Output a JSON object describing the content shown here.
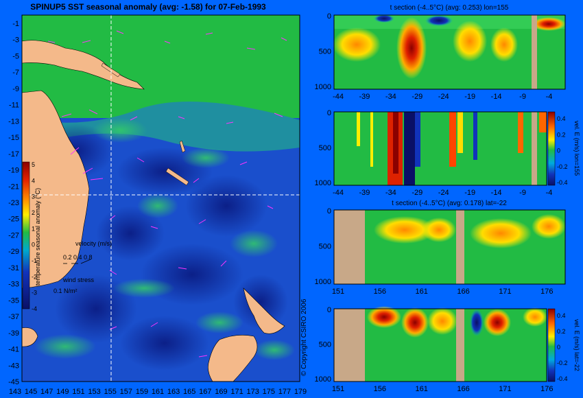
{
  "map": {
    "title": "SPINUP5 SST seasonal anomaly (avg: -1.58) for 07-Feb-1993",
    "lat_ticks": [
      "-1",
      "-3",
      "-5",
      "-7",
      "-9",
      "-11",
      "-13",
      "-15",
      "-17",
      "-19",
      "-21",
      "-23",
      "-25",
      "-27",
      "-29",
      "-31",
      "-33",
      "-35",
      "-37",
      "-39",
      "-41",
      "-43",
      "-45"
    ],
    "lon_ticks": [
      "143",
      "145",
      "147",
      "149",
      "151",
      "153",
      "155",
      "157",
      "159",
      "161",
      "163",
      "165",
      "167",
      "169",
      "171",
      "173",
      "175",
      "177",
      "179"
    ],
    "colorbar_label": "temperature seasonal anomaly (°C)",
    "colorbar_ticks": [
      "5",
      "4",
      "3",
      "2",
      "1",
      "0",
      "-1",
      "-2",
      "-3",
      "-4"
    ],
    "velocity_label": "velocity (m/s)",
    "velocity_scale": "0.2 0.4 0.8",
    "wind_label": "wind stress",
    "wind_scale": "0.1 N/m²",
    "section_lon": 155,
    "section_lat": -22
  },
  "copyright": "© Copyright CSIRO 2006",
  "panels": [
    {
      "title": "t section (-4..5°C) (avg: 0.253) lon=155",
      "x_ticks": [
        "-44",
        "-39",
        "-34",
        "-29",
        "-24",
        "-19",
        "-14",
        "-9",
        "-4"
      ],
      "y_ticks": [
        "0",
        "500",
        "1000"
      ],
      "colorbar_label": "",
      "colorbar_ticks": []
    },
    {
      "title": "",
      "x_ticks": [
        "-44",
        "-39",
        "-34",
        "-29",
        "-24",
        "-19",
        "-14",
        "-9",
        "-4"
      ],
      "y_ticks": [
        "0",
        "500",
        "1000"
      ],
      "colorbar_label": "vel. E (m/s) lon=155",
      "colorbar_ticks": [
        "0.4",
        "0.2",
        "0",
        "-0.2",
        "-0.4"
      ]
    },
    {
      "title": "t section (-4..5°C) (avg: 0.178) lat=-22",
      "x_ticks": [
        "151",
        "156",
        "161",
        "166",
        "171",
        "176"
      ],
      "y_ticks": [
        "0",
        "500",
        "1000"
      ],
      "colorbar_label": "",
      "colorbar_ticks": []
    },
    {
      "title": "",
      "x_ticks": [
        "151",
        "156",
        "161",
        "166",
        "171",
        "176"
      ],
      "y_ticks": [
        "0",
        "500",
        "1000"
      ],
      "colorbar_label": "vel. E (m/s) lat=-22",
      "colorbar_ticks": [
        "0.4",
        "0.2",
        "0",
        "-0.2",
        "-0.4"
      ]
    }
  ],
  "colors": {
    "background": "#0066ff",
    "land": "#f4b98a",
    "ocean_green": "#22bb44",
    "ocean_blue": "#1133bb",
    "ocean_deep": "#0a1a80",
    "section_land": "#c8a888",
    "vectors": "#ff33ff"
  }
}
